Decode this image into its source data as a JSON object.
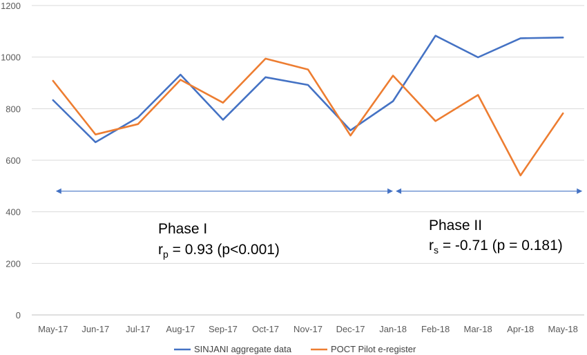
{
  "chart_data": {
    "type": "line",
    "title": "",
    "xlabel": "",
    "ylabel": "",
    "categories": [
      "May-17",
      "Jun-17",
      "Jul-17",
      "Aug-17",
      "Sep-17",
      "Oct-17",
      "Nov-17",
      "Dec-17",
      "Jan-18",
      "Feb-18",
      "Mar-18",
      "Apr-18",
      "May-18"
    ],
    "ylim": [
      0,
      1200
    ],
    "yticks": [
      "0",
      "200",
      "400",
      "600",
      "800",
      "1000",
      "1200"
    ],
    "grid": true,
    "legend_position": "bottom",
    "series": [
      {
        "name": "SINJANI aggregate data",
        "color": "#4472C4",
        "values": [
          833,
          670,
          766,
          932,
          757,
          922,
          892,
          716,
          829,
          1083,
          999,
          1073,
          1076
        ]
      },
      {
        "name": "POCT Pilot e-register",
        "color": "#ED7D31",
        "values": [
          908,
          700,
          740,
          912,
          823,
          994,
          952,
          696,
          928,
          752,
          853,
          541,
          782
        ]
      }
    ],
    "annotations": {
      "phase1": {
        "title": "Phase I",
        "stat_var": "r",
        "stat_sub": "p",
        "stat_rest": " = 0.93 (p<0.001)"
      },
      "phase2": {
        "title": "Phase II",
        "stat_var": "r",
        "stat_sub": "s",
        "stat_rest": " = -0.71 (p = 0.181)"
      },
      "arrow_color": "#4472C4",
      "arrow_y_value": 480
    }
  }
}
